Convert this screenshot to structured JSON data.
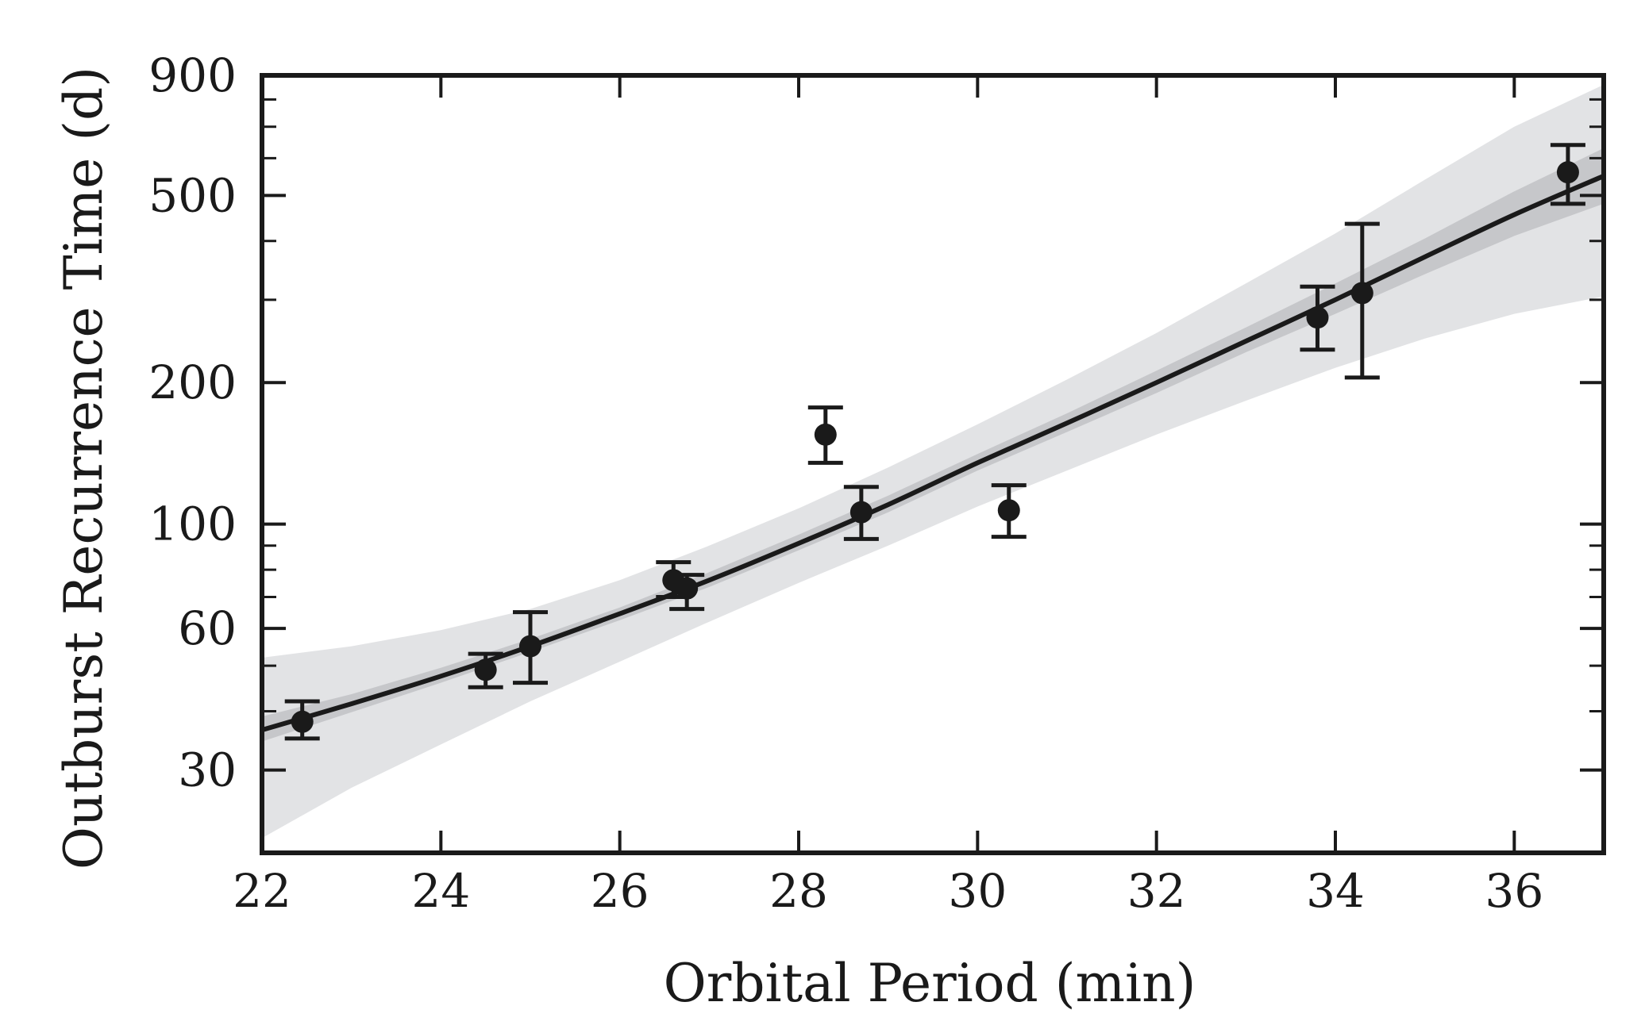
{
  "chart_data": {
    "type": "scatter",
    "title": "",
    "xlabel": "Orbital Period (min)",
    "ylabel": "Outburst Recurrence Time (d)",
    "xlim": [
      22,
      37
    ],
    "ylim": [
      20,
      900
    ],
    "yscale": "log",
    "x_ticks": [
      22,
      24,
      26,
      28,
      30,
      32,
      34,
      36
    ],
    "x_tick_labels": [
      "22",
      "24",
      "26",
      "28",
      "30",
      "32",
      "34",
      "36"
    ],
    "y_ticks": [
      30,
      60,
      100,
      200,
      500,
      900
    ],
    "y_tick_labels": [
      "30",
      "60",
      "100",
      "200",
      "500",
      "900"
    ],
    "y_minor_ticks": [
      40,
      50,
      70,
      80,
      90,
      300,
      400,
      600,
      700,
      800
    ],
    "grid": false,
    "colors": {
      "points": "#1a1a1a",
      "fit_line": "#1a1a1a",
      "band_outer": "#e2e3e5",
      "band_inner": "#c6c7ca"
    },
    "points": [
      {
        "x": 22.45,
        "y": 38,
        "ylo": 35,
        "yhi": 42
      },
      {
        "x": 24.5,
        "y": 49,
        "ylo": 45,
        "yhi": 53
      },
      {
        "x": 25.0,
        "y": 55,
        "ylo": 46,
        "yhi": 65
      },
      {
        "x": 26.6,
        "y": 76,
        "ylo": 70,
        "yhi": 83
      },
      {
        "x": 26.75,
        "y": 73,
        "ylo": 66,
        "yhi": 78
      },
      {
        "x": 28.3,
        "y": 155,
        "ylo": 135,
        "yhi": 177
      },
      {
        "x": 28.7,
        "y": 106,
        "ylo": 93,
        "yhi": 120
      },
      {
        "x": 30.35,
        "y": 107,
        "ylo": 94,
        "yhi": 121
      },
      {
        "x": 33.8,
        "y": 275,
        "ylo": 235,
        "yhi": 320
      },
      {
        "x": 34.3,
        "y": 310,
        "ylo": 205,
        "yhi": 435
      },
      {
        "x": 36.6,
        "y": 560,
        "ylo": 480,
        "yhi": 640
      }
    ],
    "fit": {
      "x": [
        22,
        23,
        24,
        25,
        26,
        27,
        28,
        29,
        30,
        31,
        32,
        33,
        34,
        35,
        36,
        37
      ],
      "y": [
        36.5,
        41.5,
        47.5,
        55,
        64.5,
        76,
        91,
        110,
        135,
        164,
        200,
        245,
        300,
        370,
        455,
        550
      ],
      "inner_lo": [
        34.5,
        39.8,
        46,
        53.5,
        62.5,
        73.5,
        88,
        106,
        130,
        157,
        190,
        232,
        280,
        340,
        410,
        480
      ],
      "inner_hi": [
        39,
        43.5,
        49.5,
        57,
        66.5,
        79,
        95,
        115,
        141,
        172,
        212,
        262,
        325,
        405,
        510,
        630
      ],
      "outer_lo": [
        21.5,
        27.5,
        34,
        42,
        51,
        62,
        75,
        90,
        109,
        130,
        155,
        183,
        215,
        248,
        280,
        305
      ],
      "outer_hi": [
        52,
        55,
        59.5,
        66,
        76,
        90,
        108,
        132,
        163,
        203,
        255,
        325,
        415,
        540,
        700,
        860
      ]
    }
  }
}
